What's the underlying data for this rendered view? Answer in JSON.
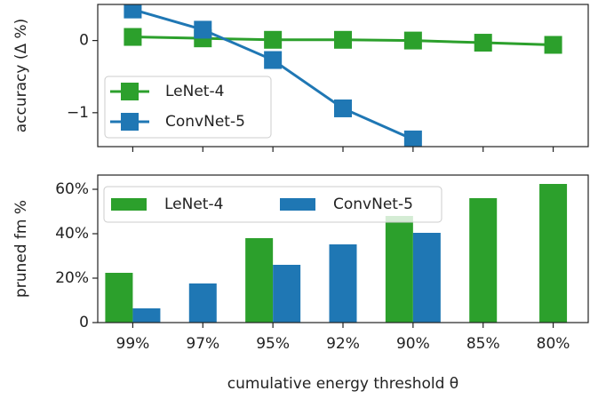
{
  "chart_data": [
    {
      "type": "line",
      "ylabel": "accuracy (Δ %)",
      "ylim": [
        -1.47,
        0.5
      ],
      "yticks": [
        {
          "value": 0,
          "label": "0"
        },
        {
          "value": -1,
          "label": "−1"
        }
      ],
      "legend": "lower left",
      "series": [
        {
          "name": "LeNet-4",
          "color": "#2ca02c",
          "values": [
            0.05,
            0.03,
            0.01,
            0.01,
            0.0,
            -0.03,
            -0.06
          ]
        },
        {
          "name": "ConvNet-5",
          "color": "#1f77b4",
          "values": [
            0.43,
            0.15,
            -0.27,
            -0.94,
            -1.37,
            null,
            null
          ]
        }
      ]
    },
    {
      "type": "bar",
      "ylabel": "pruned fm %",
      "xlabel": "cumulative energy threshold θ",
      "categories": [
        "99%",
        "97%",
        "95%",
        "92%",
        "90%",
        "85%",
        "80%"
      ],
      "ylim": [
        0,
        66.4
      ],
      "yticks": [
        0,
        {
          "value": 20,
          "label": "20%"
        },
        {
          "value": 40,
          "label": "40%"
        },
        {
          "value": 60,
          "label": "60%"
        }
      ],
      "legend": "upper left",
      "series": [
        {
          "name": "LeNet-4",
          "color": "#2ca02c",
          "values": [
            22.4,
            null,
            38,
            null,
            48,
            56,
            62.4
          ]
        },
        {
          "name": "ConvNet-5",
          "color": "#1f77b4",
          "values": [
            6.4,
            17.6,
            26,
            35.2,
            40.4,
            null,
            null
          ]
        }
      ]
    }
  ]
}
